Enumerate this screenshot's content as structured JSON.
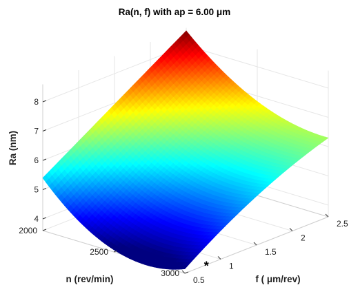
{
  "chart_data": {
    "type": "surface",
    "title": "Ra(n, f) with ap = 6.00 μm",
    "xlabel": "f ( μm/rev)",
    "ylabel": "n (rev/min)",
    "zlabel": "Ra (nm)",
    "f_range": [
      0.5,
      2.5
    ],
    "n_range": [
      2000,
      3000
    ],
    "zlim": [
      3.6,
      8.6
    ],
    "f_ticks": [
      "0.5",
      "1",
      "1.5",
      "2",
      "2.5"
    ],
    "n_ticks": [
      "2000",
      "2500",
      "3000"
    ],
    "z_ticks": [
      "4",
      "5",
      "6",
      "7",
      "8"
    ],
    "colormap": "jet",
    "grid": true,
    "corner_values": {
      "f0.5_n2000": 5.4,
      "f2.5_n2000": 8.5,
      "f2.5_n3000": 6.3,
      "f0.5_n3000": 3.75
    },
    "marker": {
      "symbol": "*",
      "f": 0.8,
      "n": 3000
    }
  }
}
